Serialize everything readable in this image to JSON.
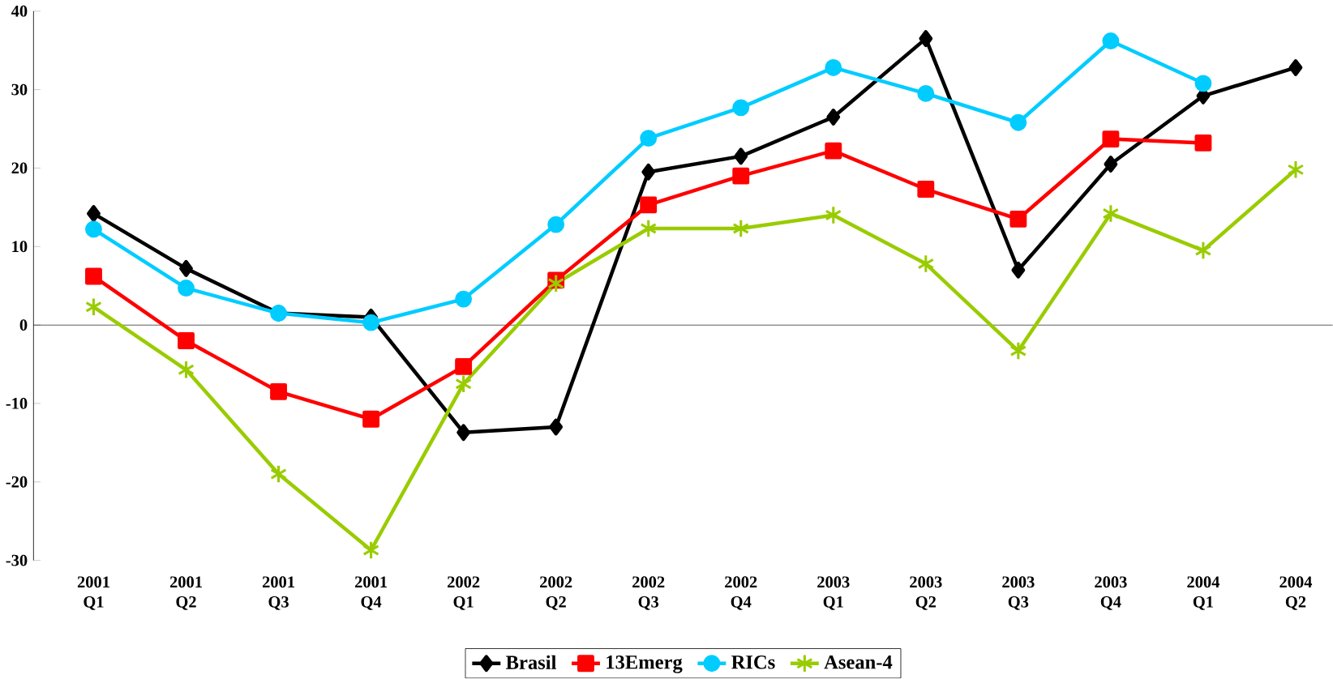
{
  "chart_data": {
    "type": "line",
    "categories": [
      "2001 Q1",
      "2001 Q2",
      "2001 Q3",
      "2001 Q4",
      "2002 Q1",
      "2002 Q2",
      "2002 Q3",
      "2002 Q4",
      "2003 Q1",
      "2003 Q2",
      "2003 Q3",
      "2003 Q4",
      "2004 Q1",
      "2004 Q2"
    ],
    "series": [
      {
        "name": "Brasil",
        "color": "#000000",
        "marker": "diamond",
        "values": [
          14.2,
          7.2,
          1.5,
          1.0,
          -13.7,
          -13.0,
          19.5,
          21.5,
          26.5,
          36.5,
          7.0,
          20.5,
          29.2,
          32.8
        ]
      },
      {
        "name": "13Emerg",
        "color": "#ff0000",
        "marker": "square",
        "values": [
          6.2,
          -2.0,
          -8.5,
          -12.0,
          -5.3,
          5.7,
          15.3,
          19.0,
          22.2,
          17.3,
          13.5,
          23.7,
          23.2,
          null
        ]
      },
      {
        "name": "RICs",
        "color": "#00ccff",
        "marker": "circle",
        "values": [
          12.2,
          4.7,
          1.5,
          0.3,
          3.3,
          12.8,
          23.8,
          27.7,
          32.8,
          29.5,
          25.8,
          36.2,
          30.8,
          null
        ]
      },
      {
        "name": "Asean-4",
        "color": "#99cc00",
        "marker": "cross",
        "values": [
          2.3,
          -5.7,
          -19.0,
          -28.7,
          -7.5,
          5.3,
          12.3,
          12.3,
          14.0,
          7.8,
          -3.3,
          14.2,
          9.5,
          19.8
        ]
      }
    ],
    "ylim": [
      -30,
      40
    ],
    "yticks": [
      -30,
      -20,
      -10,
      0,
      10,
      20,
      30,
      40
    ],
    "legend": "bottom"
  }
}
